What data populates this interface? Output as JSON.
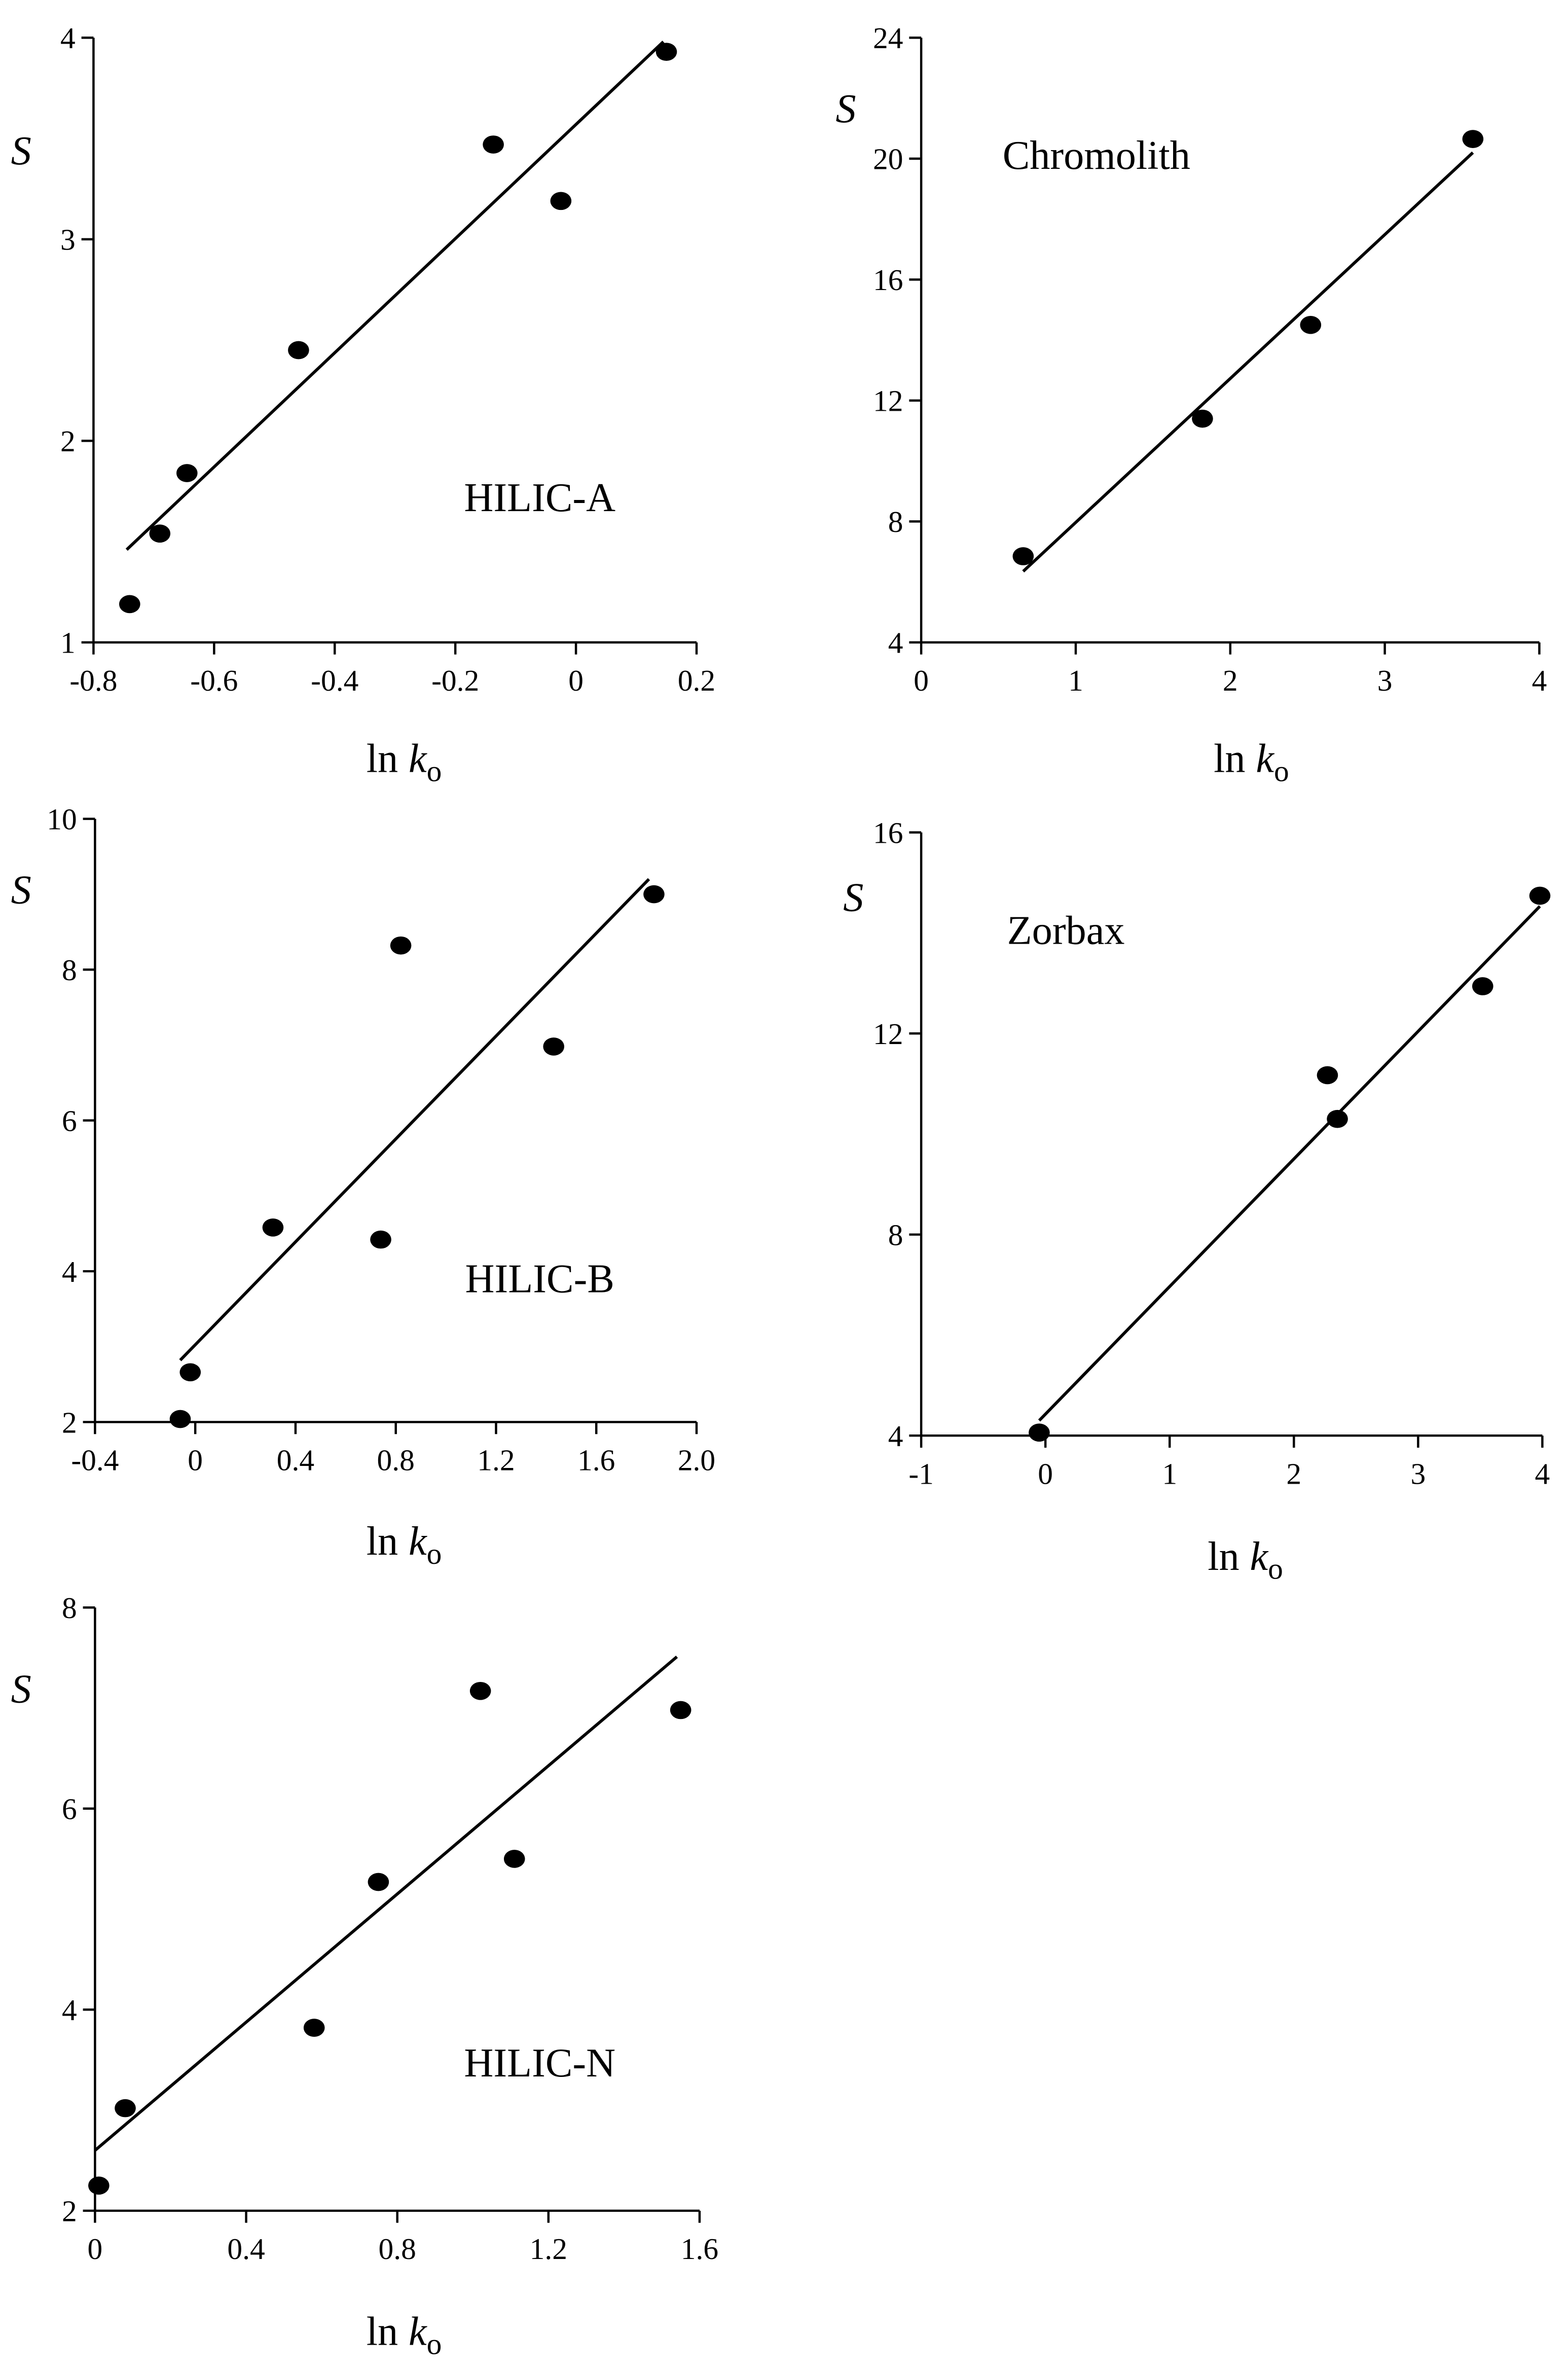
{
  "chart_data": [
    {
      "type": "scatter",
      "title": "HILIC-A",
      "ylabel": "S",
      "xlabel": "ln",
      "xlabel_var": "k",
      "xlabel_sub": "o",
      "color": "#000000",
      "x": [
        -0.74,
        -0.69,
        -0.645,
        -0.46,
        -0.137,
        -0.025,
        0.15
      ],
      "values": [
        1.19,
        1.54,
        1.84,
        2.45,
        3.47,
        3.19,
        3.93
      ],
      "fit_line": {
        "x": [
          -0.745,
          0.145
        ],
        "y": [
          1.46,
          3.98
        ]
      },
      "xlim": [
        -0.8,
        0.2
      ],
      "xticks": [
        -0.8,
        -0.6,
        -0.4,
        -0.2,
        0,
        0.2
      ],
      "ylim": [
        1,
        4
      ],
      "yticks": [
        1,
        2,
        3,
        4
      ]
    },
    {
      "type": "scatter",
      "title": "Chromolith",
      "ylabel": "S",
      "xlabel": "ln",
      "xlabel_var": "k",
      "xlabel_sub": "o",
      "color": "#000000",
      "x": [
        0.66,
        1.82,
        2.52,
        3.57
      ],
      "values": [
        6.85,
        11.4,
        14.5,
        20.65
      ],
      "fit_line": {
        "x": [
          0.66,
          3.57
        ],
        "y": [
          6.35,
          20.2
        ]
      },
      "xlim": [
        0,
        4
      ],
      "xticks": [
        0,
        1,
        2,
        3,
        4
      ],
      "ylim": [
        4,
        24
      ],
      "yticks": [
        4,
        8,
        12,
        16,
        20,
        24
      ]
    },
    {
      "type": "scatter",
      "title": "HILIC-B",
      "ylabel": "S",
      "xlabel": "ln",
      "xlabel_var": "k",
      "xlabel_sub": "o",
      "color": "#000000",
      "x": [
        -0.06,
        -0.02,
        0.31,
        0.74,
        0.82,
        1.43,
        1.83
      ],
      "values": [
        2.04,
        2.66,
        4.58,
        4.42,
        8.32,
        6.98,
        9.0
      ],
      "fit_line": {
        "x": [
          -0.06,
          1.81
        ],
        "y": [
          2.82,
          9.2
        ]
      },
      "xlim": [
        -0.4,
        2
      ],
      "xticks": [
        -0.4,
        0,
        0.4,
        0.8,
        1.2,
        1.6,
        {
          "value": 2,
          "label": "2.0"
        }
      ],
      "ylim": [
        2,
        10
      ],
      "yticks": [
        2,
        4,
        6,
        8,
        10
      ]
    },
    {
      "type": "scatter",
      "title": "Zorbax",
      "ylabel": "S",
      "xlabel": "ln",
      "xlabel_var": "k",
      "xlabel_sub": "o",
      "color": "#000000",
      "x": [
        -0.05,
        2.27,
        2.35,
        3.52,
        3.98
      ],
      "values": [
        4.06,
        11.17,
        10.3,
        12.94,
        14.74
      ],
      "fit_line": {
        "x": [
          -0.05,
          3.98
        ],
        "y": [
          4.3,
          14.53
        ]
      },
      "xlim": [
        -1,
        4
      ],
      "xticks": [
        -1,
        0,
        1,
        2,
        3,
        4
      ],
      "ylim": [
        4,
        16
      ],
      "yticks": [
        4,
        8,
        12,
        16
      ]
    },
    {
      "type": "scatter",
      "title": "HILIC-N",
      "ylabel": "S",
      "xlabel": "ln",
      "xlabel_var": "k",
      "xlabel_sub": "o",
      "color": "#000000",
      "x": [
        0.01,
        0.08,
        0.58,
        0.75,
        1.02,
        1.11,
        1.55
      ],
      "values": [
        2.25,
        3.02,
        3.82,
        5.27,
        7.17,
        5.5,
        6.98
      ],
      "fit_line": {
        "x": [
          0,
          1.54
        ],
        "y": [
          2.6,
          7.51
        ]
      },
      "xlim": [
        0,
        1.6
      ],
      "xticks": [
        0,
        0.4,
        0.8,
        1.2,
        1.6
      ],
      "ylim": [
        2,
        8
      ],
      "yticks": [
        2,
        4,
        6,
        8
      ]
    }
  ]
}
